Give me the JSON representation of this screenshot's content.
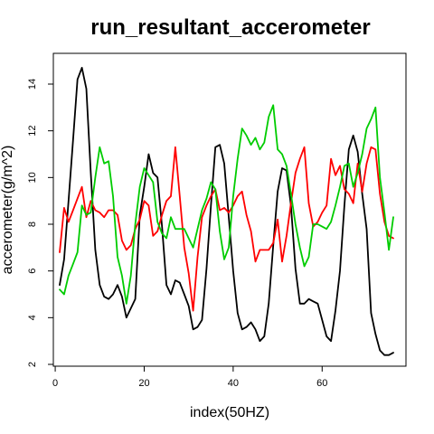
{
  "chart_data": {
    "type": "line",
    "title": "run_resultant_accerometer",
    "xlabel": "index(50HZ)",
    "ylabel": "accerometer(g/m^2)",
    "xlim": [
      1,
      76
    ],
    "ylim": [
      2,
      15
    ],
    "xticks": [
      0,
      20,
      40,
      60
    ],
    "yticks": [
      2,
      4,
      6,
      8,
      10,
      12,
      14
    ],
    "grid": false,
    "legend": "none",
    "series": [
      {
        "color": "#000000",
        "x": [
          1,
          2,
          3,
          4,
          5,
          6,
          7,
          8,
          9,
          10,
          11,
          12,
          13,
          14,
          15,
          16,
          17,
          18,
          19,
          20,
          21,
          22,
          23,
          24,
          25,
          26,
          27,
          28,
          29,
          30,
          31,
          32,
          33,
          34,
          35,
          36,
          37,
          38,
          39,
          40,
          41,
          42,
          43,
          44,
          45,
          46,
          47,
          48,
          49,
          50,
          51,
          52,
          53,
          54,
          55,
          56,
          57,
          58,
          59,
          60,
          61,
          62,
          63,
          64,
          65,
          66,
          67,
          68,
          69,
          70,
          71,
          72,
          73,
          74,
          75,
          76
        ],
        "values": [
          5.4,
          6.5,
          9.0,
          11.6,
          14.2,
          14.7,
          13.8,
          10.2,
          6.9,
          5.4,
          4.9,
          4.8,
          5.0,
          5.4,
          4.9,
          4.0,
          4.4,
          4.8,
          8.4,
          9.6,
          11.0,
          10.2,
          10.0,
          7.9,
          5.4,
          5.0,
          5.6,
          5.5,
          5.0,
          4.5,
          3.5,
          3.6,
          3.9,
          6.1,
          8.8,
          11.3,
          11.4,
          10.6,
          8.3,
          6.0,
          4.2,
          3.5,
          3.6,
          3.8,
          3.5,
          3.0,
          3.2,
          4.6,
          7.1,
          9.4,
          10.4,
          10.3,
          8.8,
          6.1,
          4.6,
          4.6,
          4.8,
          4.7,
          4.6,
          3.9,
          3.2,
          3.0,
          4.3,
          6.0,
          8.8,
          11.2,
          11.8,
          11.1,
          9.3,
          7.8,
          4.2,
          3.3,
          2.6,
          2.4,
          2.4,
          2.5
        ]
      },
      {
        "color": "#ff0000",
        "x": [
          1,
          2,
          3,
          4,
          5,
          6,
          7,
          8,
          9,
          10,
          11,
          12,
          13,
          14,
          15,
          16,
          17,
          18,
          19,
          20,
          21,
          22,
          23,
          24,
          25,
          26,
          27,
          28,
          29,
          30,
          31,
          32,
          33,
          34,
          35,
          36,
          37,
          38,
          39,
          40,
          41,
          42,
          43,
          44,
          45,
          46,
          47,
          48,
          49,
          50,
          51,
          52,
          53,
          54,
          55,
          56,
          57,
          58,
          59,
          60,
          61,
          62,
          63,
          64,
          65,
          66,
          67,
          68,
          69,
          70,
          71,
          72,
          73,
          74,
          75,
          76
        ],
        "values": [
          6.8,
          8.7,
          8.1,
          8.6,
          9.1,
          9.6,
          8.3,
          9.0,
          8.6,
          8.5,
          8.3,
          8.6,
          8.6,
          8.4,
          7.3,
          6.9,
          7.1,
          7.8,
          8.2,
          9.0,
          8.8,
          7.5,
          7.7,
          8.4,
          9.0,
          9.2,
          11.3,
          9.2,
          7.0,
          5.9,
          4.3,
          6.6,
          8.3,
          8.8,
          9.2,
          9.5,
          8.6,
          8.7,
          8.5,
          8.8,
          9.2,
          9.4,
          8.4,
          7.7,
          6.4,
          6.9,
          6.9,
          6.9,
          7.2,
          8.2,
          6.4,
          7.5,
          8.9,
          10.2,
          10.8,
          11.3,
          8.9,
          7.9,
          8.1,
          8.5,
          8.8,
          10.8,
          10.1,
          10.5,
          9.5,
          9.3,
          8.9,
          10.6,
          9.4,
          10.6,
          11.3,
          11.2,
          9.3,
          8.1,
          7.5,
          7.4
        ]
      },
      {
        "color": "#00cc00",
        "x": [
          1,
          2,
          3,
          4,
          5,
          6,
          7,
          8,
          9,
          10,
          11,
          12,
          13,
          14,
          15,
          16,
          17,
          18,
          19,
          20,
          21,
          22,
          23,
          24,
          25,
          26,
          27,
          28,
          29,
          30,
          31,
          32,
          33,
          34,
          35,
          36,
          37,
          38,
          39,
          40,
          41,
          42,
          43,
          44,
          45,
          46,
          47,
          48,
          49,
          50,
          51,
          52,
          53,
          54,
          55,
          56,
          57,
          58,
          59,
          60,
          61,
          62,
          63,
          64,
          65,
          66,
          67,
          68,
          69,
          70,
          71,
          72,
          73,
          74,
          75,
          76
        ],
        "values": [
          5.2,
          5.0,
          5.8,
          6.3,
          6.8,
          8.8,
          8.4,
          8.5,
          10.0,
          11.3,
          10.6,
          10.7,
          9.2,
          6.6,
          5.8,
          4.6,
          5.8,
          8.0,
          9.6,
          10.4,
          10.1,
          9.8,
          8.1,
          7.6,
          7.4,
          8.3,
          7.8,
          7.8,
          7.8,
          7.4,
          7.0,
          7.8,
          8.6,
          9.1,
          9.8,
          9.5,
          7.7,
          6.5,
          7.0,
          9.2,
          10.8,
          12.1,
          11.8,
          11.4,
          11.7,
          11.2,
          11.5,
          12.6,
          13.1,
          11.2,
          11.0,
          10.5,
          9.3,
          8.0,
          7.0,
          6.2,
          6.6,
          8.0,
          8.0,
          7.9,
          7.8,
          8.1,
          8.8,
          9.6,
          10.5,
          10.6,
          9.6,
          10.2,
          11.0,
          12.1,
          12.5,
          13.0,
          10.0,
          8.5,
          6.9,
          8.3
        ]
      }
    ]
  }
}
